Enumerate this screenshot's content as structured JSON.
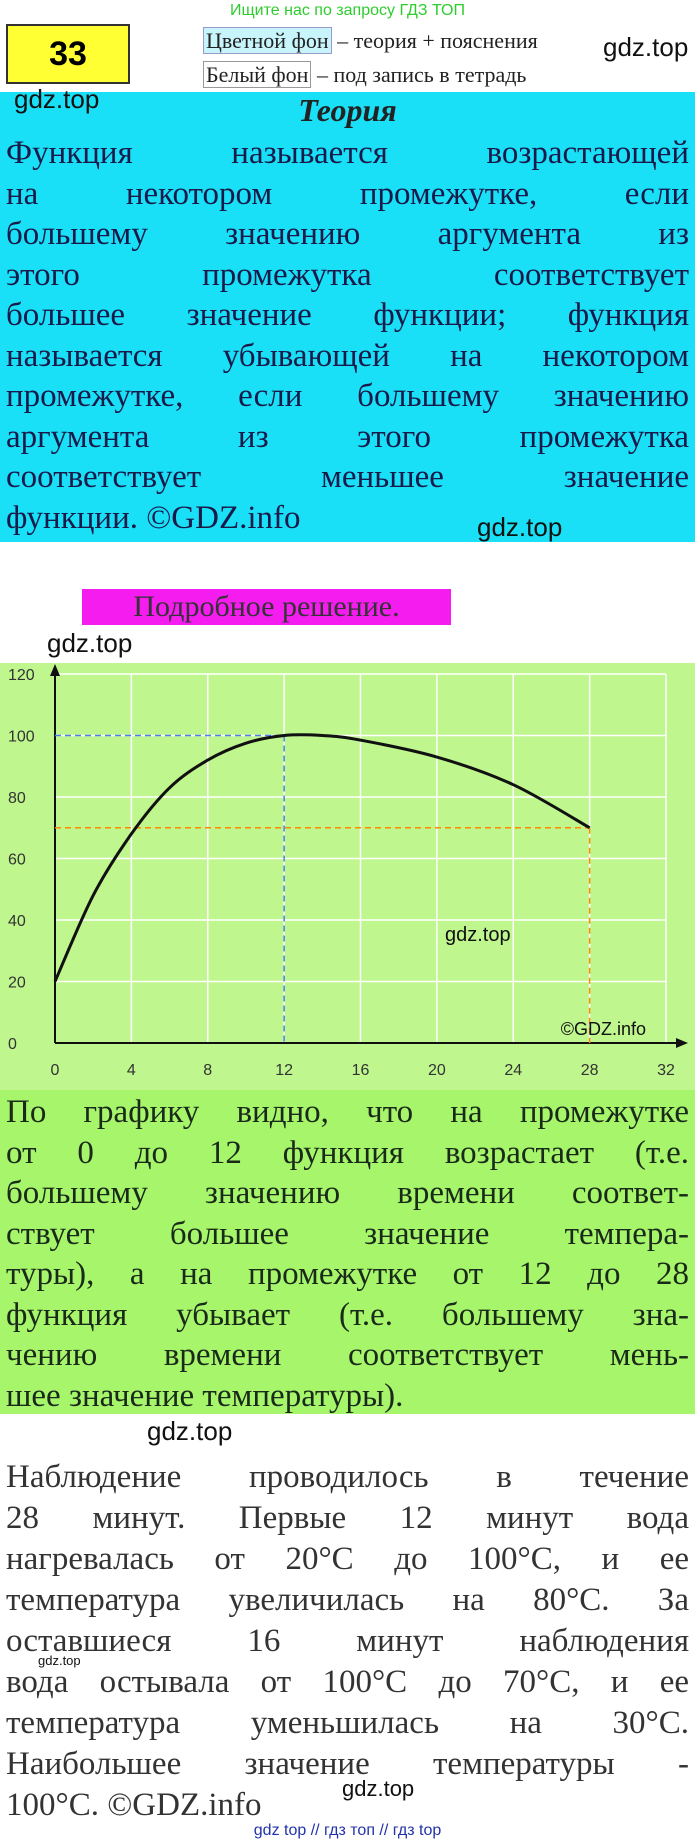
{
  "header": {
    "search_hint": "Ищите нас по запросу ГДЗ ТОП",
    "number": "33",
    "legend_color_key": "Цветной фон",
    "legend_color_text": "– теория + пояснения",
    "legend_white_key": "Белый фон",
    "legend_white_text": "– под запись в тетрадь"
  },
  "theory": {
    "title": "Теория",
    "lines": [
      "Функция называется возрастающей",
      "на некотором промежутке, если",
      "большему значению аргумента из",
      "этого промежутка соответствует",
      "большее значение функции; функция",
      "называется убывающей на некотором",
      "промежутке, если большему значению",
      "аргумента из этого промежутка",
      "соответствует меньшее значение",
      "функции. ©GDZ.info"
    ]
  },
  "solution_label": "Подробное решение.",
  "chart_data": {
    "type": "line",
    "x": [
      0,
      2,
      4,
      6,
      8,
      10,
      12,
      14,
      16,
      20,
      24,
      28
    ],
    "values": [
      20,
      48,
      68,
      83,
      92,
      97.5,
      100,
      100,
      98.5,
      93,
      84,
      70
    ],
    "color": "#111111",
    "xlim": [
      0,
      32
    ],
    "ylim": [
      0,
      120
    ],
    "xticks": [
      0,
      4,
      8,
      12,
      16,
      20,
      24,
      28,
      32
    ],
    "yticks": [
      0,
      20,
      40,
      60,
      80,
      100,
      120
    ],
    "grid": true,
    "annotation": "©GDZ.info"
  },
  "explanation": {
    "lines": [
      "По графику видно, что на промежутке",
      "от 0 до 12 функция возрастает (т.е.",
      "большему значению времени соответ-",
      "ствует большее значение темпера-",
      "туры), а на промежутке от 12 до 28",
      "функция убывает (т.е. большему зна-",
      "чению времени соответствует мень-",
      "шее значение температуры)."
    ]
  },
  "conclusion": {
    "lines": [
      "Наблюдение проводилось в течение",
      "28 минут. Первые 12 минут вода",
      "нагревалась от 20°С до 100°С, и ее",
      "температура увеличилась на 80°С. За",
      "оставшиеся 16 минут наблюдения",
      "вода остывала от 100°С до 70°С, и ее",
      "температура уменьшилась на 30°С.",
      "Наибольшее значение температуры -",
      "100°С. ©GDZ.info"
    ]
  },
  "watermarks": [
    "gdz.top",
    "gdz.top",
    "gdz.top",
    "gdz.top",
    "gdz.top",
    "gdz.top",
    "gdz.top",
    "gdz.top"
  ],
  "footer": "gdz top // гдз топ // гдз top"
}
